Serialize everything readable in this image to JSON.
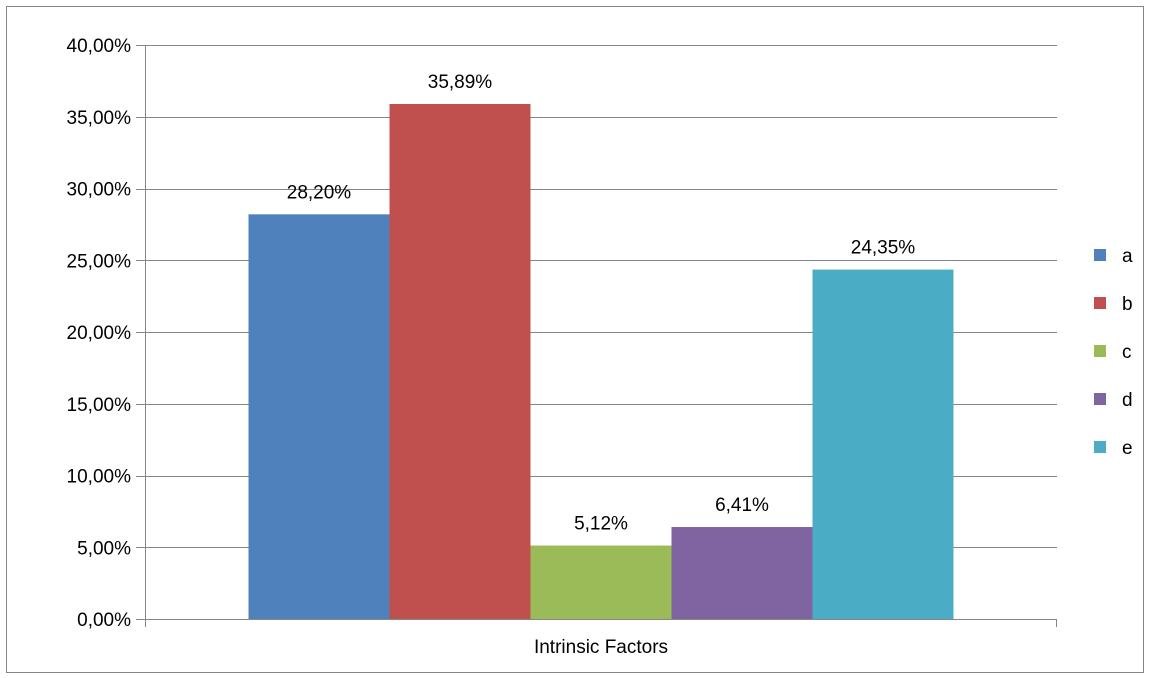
{
  "chart_data": {
    "type": "bar",
    "title": "",
    "xlabel": "",
    "ylabel": "",
    "categories": [
      "Intrinsic Factors"
    ],
    "series": [
      {
        "name": "a",
        "values": [
          28.2
        ],
        "label": "28,20%",
        "color": "#4F81BD"
      },
      {
        "name": "b",
        "values": [
          35.89
        ],
        "label": "35,89%",
        "color": "#C0504D"
      },
      {
        "name": "c",
        "values": [
          5.12
        ],
        "label": "5,12%",
        "color": "#9BBB59"
      },
      {
        "name": "d",
        "values": [
          6.41
        ],
        "label": "6,41%",
        "color": "#8064A2"
      },
      {
        "name": "e",
        "values": [
          24.35
        ],
        "label": "24,35%",
        "color": "#4BACC6"
      }
    ],
    "ylim": [
      0,
      40
    ],
    "yticks": [
      0,
      5,
      10,
      15,
      20,
      25,
      30,
      35,
      40
    ],
    "ytick_labels": [
      "0,00%",
      "5,00%",
      "10,00%",
      "15,00%",
      "20,00%",
      "25,00%",
      "30,00%",
      "35,00%",
      "40,00%"
    ],
    "grid": true,
    "legend_position": "right",
    "colors": {
      "gridline": "#868686",
      "axis": "#868686",
      "border": "#868686"
    }
  }
}
